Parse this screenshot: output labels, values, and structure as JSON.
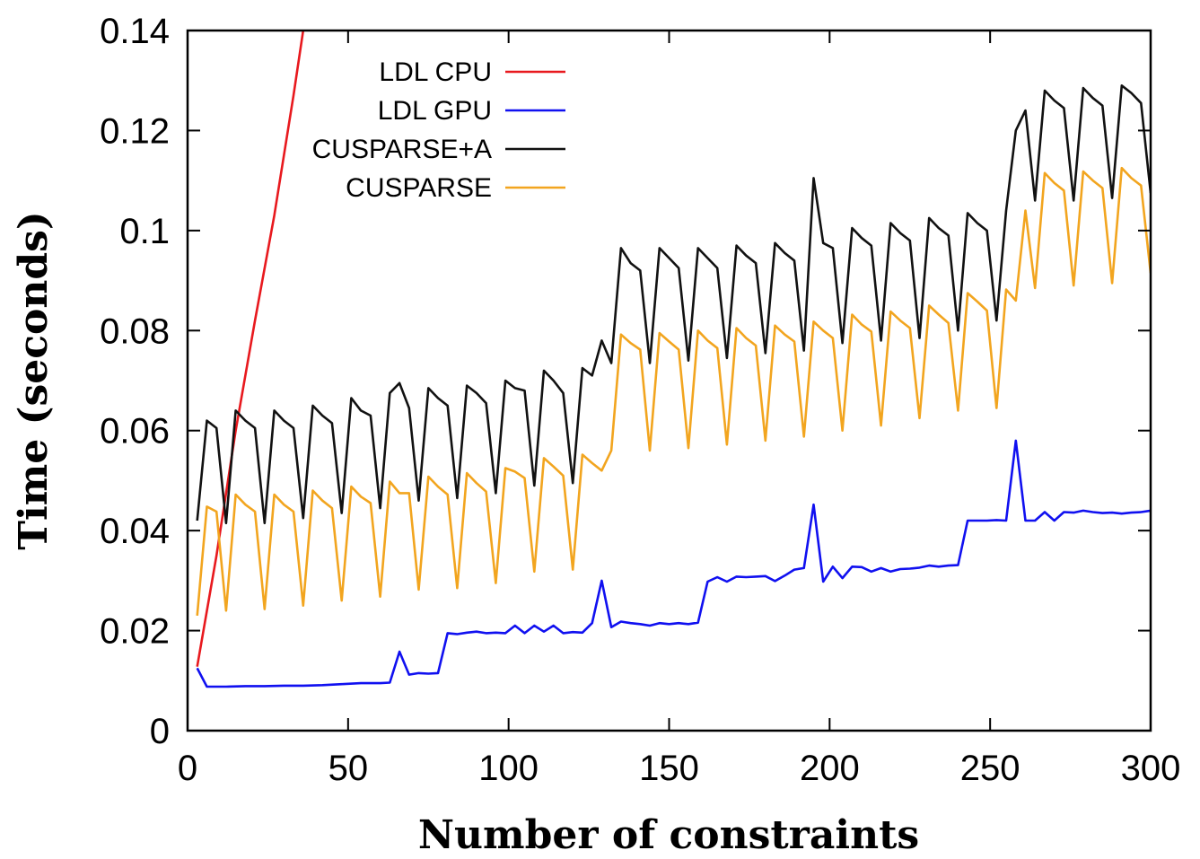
{
  "chart_data": {
    "type": "line",
    "xlabel": "Number of constraints",
    "ylabel": "Time (seconds)",
    "xlim": [
      0,
      300
    ],
    "ylim": [
      0,
      0.14
    ],
    "xticks": [
      "0",
      "50",
      "100",
      "150",
      "200",
      "250",
      "300"
    ],
    "yticks": [
      "0",
      "0.02",
      "0.04",
      "0.06",
      "0.08",
      "0.1",
      "0.12",
      "0.14"
    ],
    "legend_position": "top-left (inside plot)",
    "grid": false,
    "series": [
      {
        "name": "LDL CPU",
        "color": "#e8191e",
        "x": [
          3,
          9,
          15,
          21,
          27,
          33,
          36
        ],
        "y": [
          0.0128,
          0.035,
          0.06,
          0.082,
          0.103,
          0.127,
          0.14
        ]
      },
      {
        "name": "LDL GPU",
        "color": "#1010f0",
        "x": [
          3,
          6,
          12,
          18,
          24,
          30,
          36,
          42,
          48,
          54,
          60,
          63,
          66,
          69,
          72,
          75,
          78,
          81,
          84,
          87,
          90,
          93,
          96,
          99,
          102,
          105,
          108,
          111,
          114,
          117,
          120,
          123,
          126,
          129,
          132,
          135,
          138,
          141,
          144,
          147,
          150,
          153,
          156,
          159,
          162,
          165,
          168,
          171,
          174,
          177,
          180,
          183,
          186,
          189,
          192,
          195,
          198,
          201,
          204,
          207,
          210,
          213,
          216,
          219,
          222,
          225,
          228,
          231,
          234,
          237,
          240,
          243,
          246,
          249,
          252,
          255,
          258,
          261,
          264,
          267,
          270,
          273,
          276,
          279,
          282,
          285,
          288,
          291,
          294,
          297,
          300
        ],
        "y": [
          0.0125,
          0.0088,
          0.0088,
          0.0089,
          0.0089,
          0.009,
          0.009,
          0.0091,
          0.0093,
          0.0095,
          0.0095,
          0.0096,
          0.0158,
          0.0112,
          0.0115,
          0.0114,
          0.0115,
          0.0195,
          0.0193,
          0.0196,
          0.0198,
          0.0195,
          0.0196,
          0.0195,
          0.021,
          0.0195,
          0.021,
          0.0198,
          0.021,
          0.0195,
          0.0197,
          0.0196,
          0.0215,
          0.03,
          0.0207,
          0.0218,
          0.0215,
          0.0213,
          0.021,
          0.0215,
          0.0213,
          0.0215,
          0.0213,
          0.0216,
          0.0298,
          0.0307,
          0.0298,
          0.0308,
          0.0307,
          0.0308,
          0.0309,
          0.0299,
          0.031,
          0.0322,
          0.0325,
          0.0452,
          0.0298,
          0.0328,
          0.0305,
          0.0328,
          0.0327,
          0.0318,
          0.0325,
          0.0318,
          0.0323,
          0.0324,
          0.0326,
          0.033,
          0.0328,
          0.033,
          0.0331,
          0.042,
          0.042,
          0.042,
          0.0421,
          0.042,
          0.058,
          0.042,
          0.042,
          0.0437,
          0.042,
          0.0437,
          0.0436,
          0.044,
          0.0437,
          0.0435,
          0.0436,
          0.0434,
          0.0436,
          0.0437,
          0.044
        ]
      },
      {
        "name": "CUSPARSE+A",
        "color": "#111111",
        "x": [
          3,
          6,
          9,
          12,
          15,
          18,
          21,
          24,
          27,
          30,
          33,
          36,
          39,
          42,
          45,
          48,
          51,
          54,
          57,
          60,
          63,
          66,
          69,
          72,
          75,
          78,
          81,
          84,
          87,
          90,
          93,
          96,
          99,
          102,
          105,
          108,
          111,
          114,
          117,
          120,
          123,
          126,
          129,
          132,
          135,
          138,
          141,
          144,
          147,
          150,
          153,
          156,
          159,
          162,
          165,
          168,
          171,
          174,
          177,
          180,
          183,
          186,
          189,
          192,
          195,
          198,
          201,
          204,
          207,
          210,
          213,
          216,
          219,
          222,
          225,
          228,
          231,
          234,
          237,
          240,
          243,
          246,
          249,
          252,
          255,
          258,
          261,
          264,
          267,
          270,
          273,
          276,
          279,
          282,
          285,
          288,
          291,
          294,
          297,
          300
        ],
        "y": [
          0.042,
          0.062,
          0.0605,
          0.0415,
          0.064,
          0.062,
          0.0605,
          0.0415,
          0.064,
          0.062,
          0.0605,
          0.0425,
          0.065,
          0.063,
          0.0615,
          0.0435,
          0.0665,
          0.064,
          0.063,
          0.0445,
          0.0675,
          0.0695,
          0.0645,
          0.046,
          0.0685,
          0.0665,
          0.065,
          0.0465,
          0.069,
          0.0675,
          0.0655,
          0.0475,
          0.07,
          0.0685,
          0.068,
          0.049,
          0.072,
          0.07,
          0.0675,
          0.0495,
          0.0725,
          0.071,
          0.078,
          0.0735,
          0.0965,
          0.0935,
          0.092,
          0.0735,
          0.0965,
          0.0945,
          0.0925,
          0.074,
          0.0965,
          0.0945,
          0.0925,
          0.0745,
          0.097,
          0.095,
          0.0935,
          0.0755,
          0.0975,
          0.0955,
          0.094,
          0.076,
          0.1105,
          0.0975,
          0.0965,
          0.0775,
          0.1005,
          0.0985,
          0.097,
          0.078,
          0.1015,
          0.0995,
          0.098,
          0.0785,
          0.1025,
          0.1005,
          0.099,
          0.08,
          0.1035,
          0.1015,
          0.1,
          0.082,
          0.104,
          0.12,
          0.124,
          0.106,
          0.128,
          0.126,
          0.1245,
          0.106,
          0.1285,
          0.1265,
          0.125,
          0.1065,
          0.129,
          0.1275,
          0.1255,
          0.1075
        ]
      },
      {
        "name": "CUSPARSE",
        "color": "#f2a51f",
        "x": [
          3,
          6,
          9,
          12,
          15,
          18,
          21,
          24,
          27,
          30,
          33,
          36,
          39,
          42,
          45,
          48,
          51,
          54,
          57,
          60,
          63,
          66,
          69,
          72,
          75,
          78,
          81,
          84,
          87,
          90,
          93,
          96,
          99,
          102,
          105,
          108,
          111,
          114,
          117,
          120,
          123,
          126,
          129,
          132,
          135,
          138,
          141,
          144,
          147,
          150,
          153,
          156,
          159,
          162,
          165,
          168,
          171,
          174,
          177,
          180,
          183,
          186,
          189,
          192,
          195,
          198,
          201,
          204,
          207,
          210,
          213,
          216,
          219,
          222,
          225,
          228,
          231,
          234,
          237,
          240,
          243,
          246,
          249,
          252,
          255,
          258,
          261,
          264,
          267,
          270,
          273,
          276,
          279,
          282,
          285,
          288,
          291,
          294,
          297,
          300
        ],
        "y": [
          0.023,
          0.0448,
          0.0438,
          0.024,
          0.0472,
          0.0452,
          0.0438,
          0.0243,
          0.0472,
          0.0452,
          0.0438,
          0.025,
          0.048,
          0.046,
          0.0445,
          0.026,
          0.0488,
          0.0468,
          0.0455,
          0.0268,
          0.0498,
          0.0475,
          0.0475,
          0.0282,
          0.0508,
          0.0488,
          0.0472,
          0.0285,
          0.0515,
          0.0495,
          0.0478,
          0.0295,
          0.0525,
          0.0518,
          0.0505,
          0.0318,
          0.0545,
          0.0528,
          0.051,
          0.0322,
          0.0552,
          0.0535,
          0.052,
          0.056,
          0.0792,
          0.0775,
          0.0762,
          0.056,
          0.0795,
          0.0778,
          0.0762,
          0.0565,
          0.08,
          0.078,
          0.0765,
          0.0572,
          0.0805,
          0.0785,
          0.077,
          0.058,
          0.081,
          0.0792,
          0.0778,
          0.0588,
          0.0818,
          0.08,
          0.0785,
          0.06,
          0.0832,
          0.0812,
          0.0798,
          0.061,
          0.0838,
          0.082,
          0.0805,
          0.0625,
          0.085,
          0.0832,
          0.0815,
          0.064,
          0.0875,
          0.0858,
          0.084,
          0.0645,
          0.0882,
          0.086,
          0.104,
          0.0885,
          0.1115,
          0.1095,
          0.108,
          0.089,
          0.1118,
          0.11,
          0.1085,
          0.0895,
          0.1125,
          0.1105,
          0.109,
          0.0915
        ]
      }
    ]
  }
}
